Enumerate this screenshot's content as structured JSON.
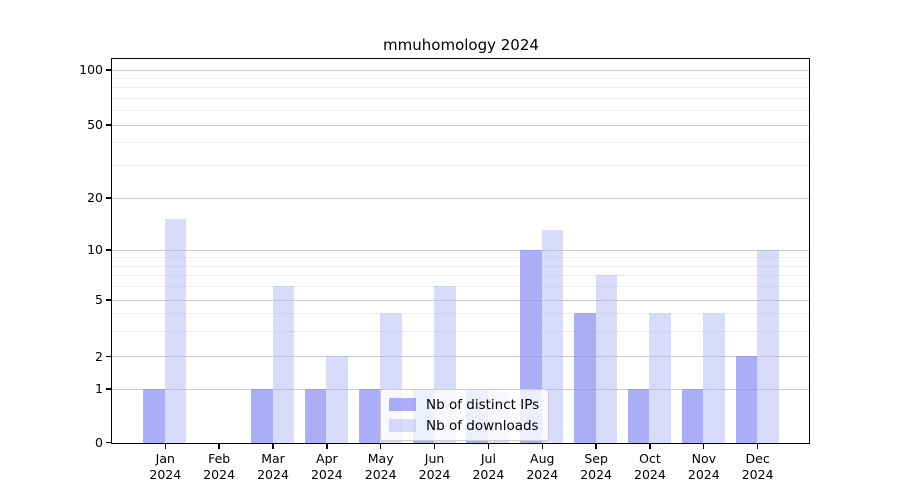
{
  "chart_data": {
    "type": "bar",
    "title": "mmuhomology 2024",
    "year_label": "2024",
    "months": [
      "Jan",
      "Feb",
      "Mar",
      "Apr",
      "May",
      "Jun",
      "Jul",
      "Aug",
      "Sep",
      "Oct",
      "Nov",
      "Dec"
    ],
    "categories": [
      "Jan 2024",
      "Feb 2024",
      "Mar 2024",
      "Apr 2024",
      "May 2024",
      "Jun 2024",
      "Jul 2024",
      "Aug 2024",
      "Sep 2024",
      "Oct 2024",
      "Nov 2024",
      "Dec 2024"
    ],
    "series": [
      {
        "name": "Nb of distinct IPs",
        "color": "rgba(138,141,242,0.72)",
        "solid_color": "#abadf6",
        "values": [
          1,
          0,
          1,
          1,
          1,
          1,
          1,
          10,
          4,
          1,
          1,
          2
        ]
      },
      {
        "name": "Nb of downloads",
        "color": "rgba(170,176,246,0.45)",
        "solid_color": "#d9dbfb",
        "values": [
          15,
          0,
          6,
          2,
          4,
          6,
          1,
          13,
          7,
          4,
          4,
          10
        ]
      }
    ],
    "y_axis": {
      "ticks": [
        0,
        1,
        2,
        5,
        10,
        20,
        50,
        100
      ],
      "minor_ticks": [
        3,
        4,
        6,
        7,
        8,
        9,
        30,
        40,
        60,
        70,
        80,
        90
      ],
      "scale": "quasi-log",
      "range": [
        0,
        115
      ]
    },
    "xlabel": "",
    "ylabel": "",
    "grid": true,
    "legend_position": "lower center"
  },
  "style": {
    "background": "#ffffff",
    "major_grid_color": "#cccccc",
    "minor_grid_color": "#ededed",
    "spine_color": "#000000",
    "text_color": "#000000"
  }
}
